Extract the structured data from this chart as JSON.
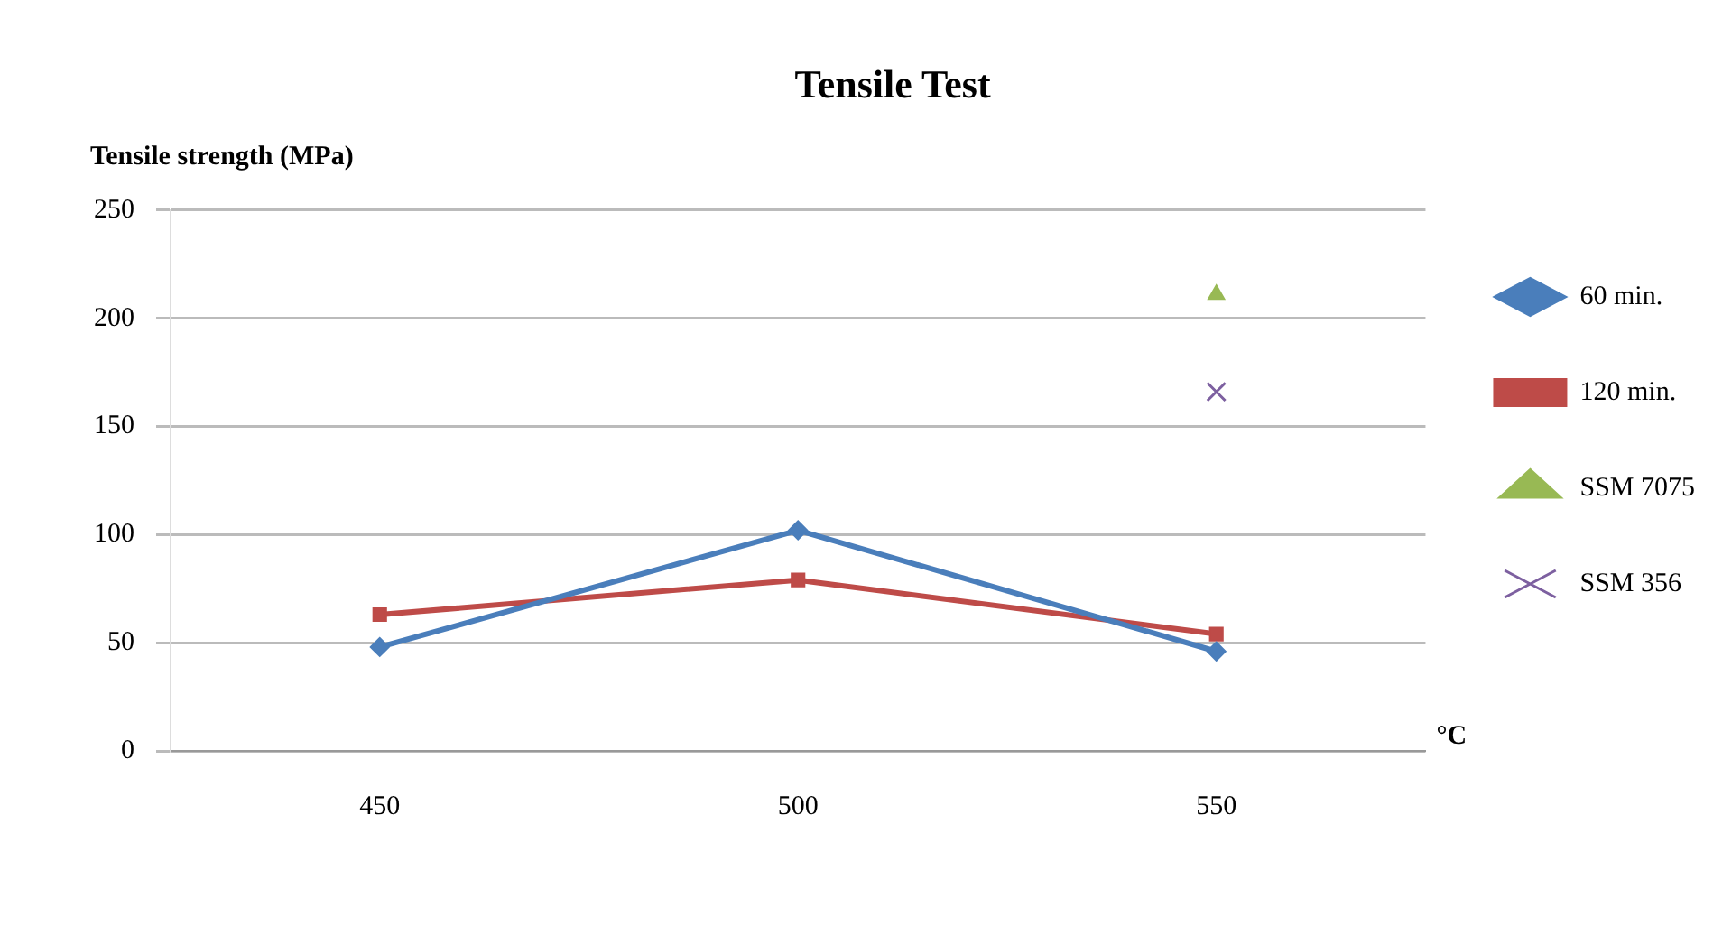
{
  "chart_data": {
    "type": "line",
    "title": "Tensile Test",
    "ylabel": "Tensile strength (MPa)",
    "xlabel": "°C",
    "categories": [
      "450",
      "500",
      "550"
    ],
    "series": [
      {
        "name": "60 min.",
        "color": "#4a7ebb",
        "marker": "diamond",
        "values": [
          48,
          102,
          46
        ]
      },
      {
        "name": "120 min.",
        "color": "#be4b48",
        "marker": "square",
        "values": [
          63,
          79,
          54
        ]
      },
      {
        "name": "SSM 7075",
        "type": "scatter",
        "color": "#98b954",
        "marker": "triangle",
        "values": [
          null,
          null,
          211
        ]
      },
      {
        "name": "SSM 356",
        "type": "scatter",
        "color": "#7d60a0",
        "marker": "cross",
        "values": [
          null,
          null,
          166
        ]
      }
    ],
    "ylim": [
      0,
      250
    ],
    "yticks": [
      0,
      50,
      100,
      150,
      200,
      250
    ],
    "grid": "y",
    "legend": "right"
  }
}
